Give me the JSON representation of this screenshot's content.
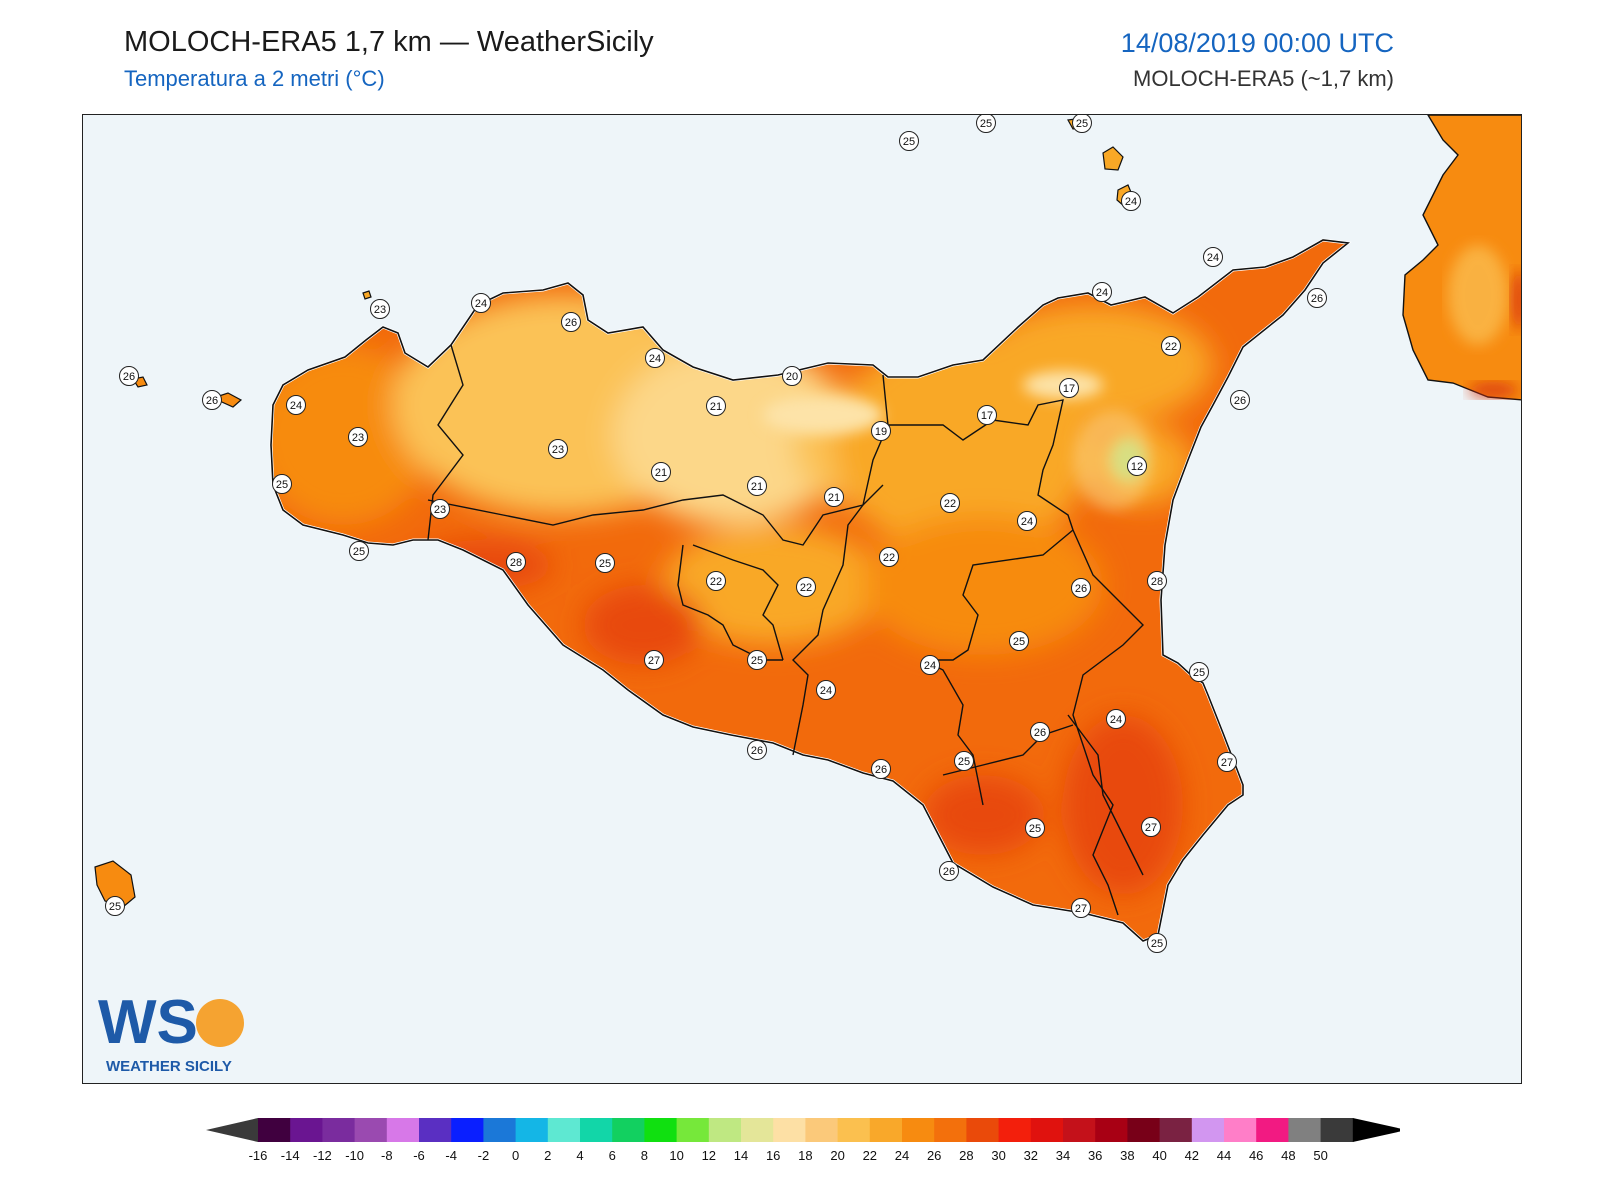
{
  "header": {
    "title": "MOLOCH-ERA5 1,7 km — WeatherSicily",
    "subtitle": "Temperatura a 2 metri (°C)",
    "datetime": "14/08/2019 00:00 UTC",
    "model": "MOLOCH-ERA5 (~1,7 km)"
  },
  "logo": {
    "letters": "WS",
    "name": "WEATHER SICILY"
  },
  "colors": {
    "sea": "#eef5f9",
    "border": "#111111",
    "t12": "#b4e67a",
    "t17": "#fcd789",
    "t20": "#fbc256",
    "t22": "#f9a826",
    "t24": "#f78b10",
    "t26": "#f26a0c",
    "t28": "#e84a0a",
    "t30": "#d8300c"
  },
  "stations": [
    {
      "v": "25"
    },
    {
      "v": "25"
    },
    {
      "v": "25"
    },
    {
      "v": "24"
    },
    {
      "v": "24"
    },
    {
      "v": "24"
    },
    {
      "v": "26"
    },
    {
      "v": "22"
    },
    {
      "v": "26"
    },
    {
      "v": "23"
    },
    {
      "v": "24"
    },
    {
      "v": "26"
    },
    {
      "v": "24"
    },
    {
      "v": "20"
    },
    {
      "v": "17"
    },
    {
      "v": "17"
    },
    {
      "v": "26"
    },
    {
      "v": "26"
    },
    {
      "v": "24"
    },
    {
      "v": "21"
    },
    {
      "v": "19"
    },
    {
      "v": "12"
    },
    {
      "v": "23"
    },
    {
      "v": "23"
    },
    {
      "v": "21"
    },
    {
      "v": "21"
    },
    {
      "v": "21"
    },
    {
      "v": "22"
    },
    {
      "v": "24"
    },
    {
      "v": "25"
    },
    {
      "v": "23"
    },
    {
      "v": "25"
    },
    {
      "v": "28"
    },
    {
      "v": "25"
    },
    {
      "v": "22"
    },
    {
      "v": "22"
    },
    {
      "v": "22"
    },
    {
      "v": "26"
    },
    {
      "v": "28"
    },
    {
      "v": "25"
    },
    {
      "v": "27"
    },
    {
      "v": "25"
    },
    {
      "v": "24"
    },
    {
      "v": "24"
    },
    {
      "v": "25"
    },
    {
      "v": "24"
    },
    {
      "v": "26"
    },
    {
      "v": "27"
    },
    {
      "v": "26"
    },
    {
      "v": "26"
    },
    {
      "v": "25"
    },
    {
      "v": "25"
    },
    {
      "v": "27"
    },
    {
      "v": "26"
    },
    {
      "v": "27"
    },
    {
      "v": "25"
    },
    {
      "v": "25"
    }
  ],
  "colorbar": {
    "ticks": [
      "-16",
      "-14",
      "-12",
      "-10",
      "-8",
      "-6",
      "-4",
      "-2",
      "0",
      "2",
      "4",
      "6",
      "8",
      "10",
      "12",
      "14",
      "16",
      "18",
      "20",
      "22",
      "24",
      "26",
      "28",
      "30",
      "32",
      "34",
      "36",
      "38",
      "40",
      "42",
      "44",
      "46",
      "48",
      "50"
    ],
    "colors": [
      "#40003f",
      "#6a1591",
      "#7a2c9e",
      "#9a4ab0",
      "#d778e8",
      "#5a2fc2",
      "#0a1fff",
      "#1b78d8",
      "#14b6e6",
      "#5ee8d2",
      "#12d6a8",
      "#12d060",
      "#10e010",
      "#76e83a",
      "#bfe882",
      "#e4e699",
      "#fde0a5",
      "#fbc97a",
      "#fbc04f",
      "#f9a82a",
      "#f78b10",
      "#f3700c",
      "#ea4a0a",
      "#f31f0c",
      "#e0120e",
      "#c4111a",
      "#a80014",
      "#780018",
      "#7a2242",
      "#d296f0",
      "#ff7ec8",
      "#f21a82",
      "#808080",
      "#3a3a3a"
    ]
  }
}
